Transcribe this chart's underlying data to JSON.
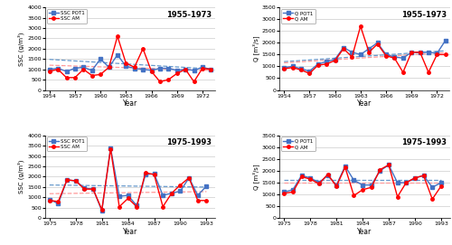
{
  "panel1": {
    "title": "1955-1973",
    "xlabel": "Year",
    "ylabel": "SSC (g/m³)",
    "ylim": [
      0,
      4000
    ],
    "yticks": [
      0,
      500,
      1000,
      1500,
      2000,
      2500,
      3000,
      3500,
      4000
    ],
    "years": [
      1954,
      1955,
      1956,
      1957,
      1958,
      1959,
      1960,
      1961,
      1962,
      1963,
      1964,
      1965,
      1966,
      1967,
      1968,
      1969,
      1970,
      1971,
      1972,
      1973
    ],
    "ssc_pot1": [
      1000,
      1050,
      900,
      1050,
      1100,
      950,
      1500,
      1100,
      1700,
      1150,
      1050,
      1000,
      950,
      1050,
      1050,
      950,
      1000,
      950,
      1100,
      1000
    ],
    "ssc_am": [
      900,
      1000,
      600,
      600,
      1000,
      700,
      750,
      1100,
      2600,
      1300,
      1100,
      2000,
      900,
      400,
      500,
      800,
      1000,
      400,
      1050,
      1000
    ],
    "trend_pot1_start": 1480,
    "trend_pot1_end": 1020,
    "trend_am_start": 1200,
    "trend_am_end": 950,
    "xtick_start": 1954,
    "xtick_step": 3,
    "xtick_end": 1973,
    "xmin": 1953.5,
    "xmax": 1973.5,
    "legend1": "SSC POT1",
    "legend2": "SSC AM"
  },
  "panel2": {
    "title": "1955-1973",
    "xlabel": "Year",
    "ylabel": "Q [m³/s]",
    "ylim": [
      0,
      3500
    ],
    "yticks": [
      0,
      500,
      1000,
      1500,
      2000,
      2500,
      3000,
      3500
    ],
    "years": [
      1954,
      1955,
      1956,
      1957,
      1958,
      1959,
      1960,
      1961,
      1962,
      1963,
      1964,
      1965,
      1966,
      1967,
      1968,
      1969,
      1970,
      1971,
      1972,
      1973
    ],
    "q_pot1": [
      950,
      1000,
      900,
      800,
      1100,
      1200,
      1300,
      1800,
      1600,
      1500,
      1750,
      2000,
      1500,
      1400,
      1350,
      1600,
      1600,
      1600,
      1550,
      2100
    ],
    "q_am": [
      900,
      950,
      850,
      700,
      1050,
      1100,
      1250,
      1750,
      1400,
      2700,
      1600,
      1950,
      1450,
      1350,
      750,
      1600,
      1600,
      750,
      1500,
      1500
    ],
    "trend_pot1_start": 1200,
    "trend_pot1_end": 1660,
    "trend_am_start": 1150,
    "trend_am_end": 1580,
    "xtick_start": 1954,
    "xtick_step": 3,
    "xtick_end": 1973,
    "xmin": 1953.5,
    "xmax": 1973.5,
    "legend1": "Q POT1",
    "legend2": "Q AM"
  },
  "panel3": {
    "title": "1975-1993",
    "xlabel": "Year",
    "ylabel": "SSC (g/m³)",
    "ylim": [
      0,
      4000
    ],
    "yticks": [
      0,
      500,
      1000,
      1500,
      2000,
      2500,
      3000,
      3500,
      4000
    ],
    "years": [
      1975,
      1976,
      1977,
      1978,
      1979,
      1980,
      1981,
      1982,
      1983,
      1984,
      1985,
      1986,
      1987,
      1988,
      1989,
      1990,
      1991,
      1992,
      1993
    ],
    "ssc_pot1": [
      900,
      700,
      1850,
      1800,
      1450,
      1400,
      350,
      3400,
      1050,
      1100,
      600,
      2100,
      2150,
      1100,
      1200,
      1300,
      1950,
      1100,
      1550
    ],
    "ssc_am": [
      850,
      800,
      1850,
      1800,
      1400,
      1400,
      400,
      3350,
      550,
      950,
      550,
      2200,
      2100,
      550,
      1200,
      1600,
      1950,
      850,
      850
    ],
    "trend_pot1_start": 1600,
    "trend_pot1_end": 1500,
    "trend_am_start": 1180,
    "trend_am_end": 1280,
    "xtick_start": 1975,
    "xtick_step": 3,
    "xtick_end": 1994,
    "xmin": 1974.5,
    "xmax": 1994.0,
    "legend1": "SSC POT1",
    "legend2": "SSC AM"
  },
  "panel4": {
    "title": "1975-1993",
    "xlabel": "Year",
    "ylabel": "Q [m³/s]",
    "ylim": [
      0,
      3500
    ],
    "yticks": [
      0,
      500,
      1000,
      1500,
      2000,
      2500,
      3000,
      3500
    ],
    "years": [
      1975,
      1976,
      1977,
      1978,
      1979,
      1980,
      1981,
      1982,
      1983,
      1984,
      1985,
      1986,
      1987,
      1988,
      1989,
      1990,
      1991,
      1992,
      1993
    ],
    "q_pot1": [
      1100,
      1200,
      1800,
      1700,
      1500,
      1800,
      1400,
      2200,
      1600,
      1400,
      1400,
      2000,
      2250,
      1500,
      1500,
      1700,
      1800,
      1300,
      1500
    ],
    "q_am": [
      1050,
      1100,
      1750,
      1650,
      1450,
      1850,
      1350,
      2150,
      950,
      1200,
      1300,
      2050,
      2250,
      900,
      1500,
      1700,
      1800,
      800,
      1350
    ],
    "trend_pot1_start": 1600,
    "trend_pot1_end": 1600,
    "trend_am_start": 1500,
    "trend_am_end": 1500,
    "xtick_start": 1975,
    "xtick_step": 3,
    "xtick_end": 1994,
    "xmin": 1974.5,
    "xmax": 1994.0,
    "legend1": "Q POT1",
    "legend2": "Q AM"
  },
  "color_blue": "#4472C4",
  "color_red": "#FF0000",
  "color_trend_blue": "#6699CC",
  "color_trend_red": "#FF9999",
  "line_width": 1.0,
  "marker_size": 2.5
}
